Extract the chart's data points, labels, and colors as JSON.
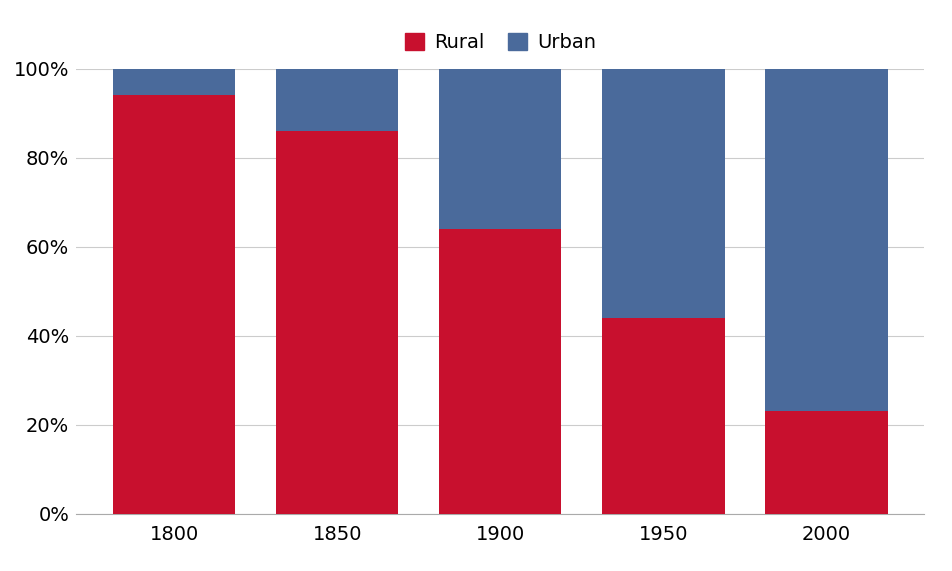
{
  "years": [
    "1800",
    "1850",
    "1900",
    "1950",
    "2000"
  ],
  "rural": [
    94,
    86,
    64,
    44,
    23
  ],
  "urban": [
    6,
    14,
    36,
    56,
    77
  ],
  "rural_color": "#c8102e",
  "urban_color": "#4a6a9b",
  "ylabel_ticks": [
    "0%",
    "20%",
    "40%",
    "60%",
    "80%",
    "100%"
  ],
  "ytick_values": [
    0,
    20,
    40,
    60,
    80,
    100
  ],
  "legend_labels": [
    "Rural",
    "Urban"
  ],
  "background_color": "#ffffff",
  "bar_width": 0.75,
  "ylim": [
    0,
    100
  ],
  "grid_color": "#cccccc",
  "tick_fontsize": 14,
  "legend_fontsize": 14
}
